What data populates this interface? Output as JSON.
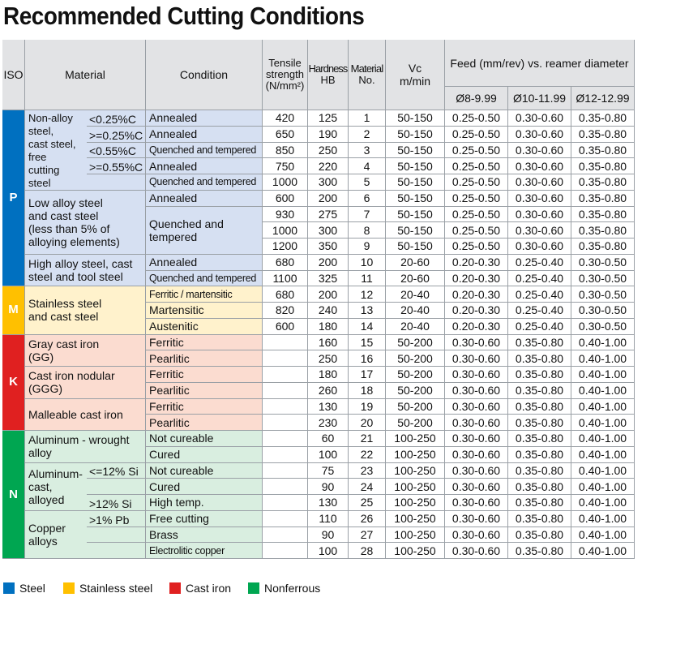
{
  "title": "Recommended Cutting Conditions",
  "colors": {
    "steel": "#0070c0",
    "stainless": "#ffc000",
    "castiron": "#e02020",
    "nonferrous": "#00a651",
    "bg_p": "#d6e0f2",
    "bg_m": "#fff2cc",
    "bg_k": "#fbdcd0",
    "bg_n": "#d9eee0"
  },
  "headers": {
    "iso": "ISO",
    "material": "Material",
    "condition": "Condition",
    "tensile_line1": "Tensile",
    "tensile_line2": "strength",
    "tensile_line3": "(N/mm²)",
    "hardness_line1": "Hardness",
    "hardness_line2": "HB",
    "matno_line1": "Material",
    "matno_line2": "No.",
    "vc_line1": "Vc",
    "vc_line2": "m/min",
    "feed": "Feed (mm/rev) vs. reamer diameter",
    "d1": "Ø8-9.99",
    "d2": "Ø10-11.99",
    "d3": "Ø12-12.99"
  },
  "iso_groups": [
    {
      "letter": "P",
      "group": "steel"
    },
    {
      "letter": "M",
      "group": "stainless"
    },
    {
      "letter": "K",
      "group": "castiron"
    },
    {
      "letter": "N",
      "group": "nonferrous"
    }
  ],
  "materials": {
    "nonalloy_l1": "Non-alloy",
    "nonalloy_l2": "steel,",
    "nonalloy_l3": "cast steel,",
    "nonalloy_l4": "free",
    "nonalloy_l5": "cutting",
    "nonalloy_l6": "steel",
    "nonalloy_s1": "<0.25%C",
    "nonalloy_s2": ">=0.25%C",
    "nonalloy_s3": "<0.55%C",
    "nonalloy_s4": ">=0.55%C",
    "lowalloy_l1": "Low alloy steel",
    "lowalloy_l2": "and cast steel",
    "lowalloy_l3": "(less than 5% of",
    "lowalloy_l4": "alloying elements)",
    "highalloy_l1": "High alloy steel, cast",
    "highalloy_l2": "steel and tool steel",
    "stainless_l1": "Stainless steel",
    "stainless_l2": "and cast steel",
    "gray_l1": "Gray cast iron",
    "gray_l2": "(GG)",
    "nodular_l1": "Cast iron nodular",
    "nodular_l2": "(GGG)",
    "malleable": "Malleable cast iron",
    "alwrought_l1": "Aluminum - wrought",
    "alwrought_l2": "alloy",
    "alcast_l1": "Aluminum-",
    "alcast_l2": "cast,",
    "alcast_l3": "alloyed",
    "alcast_s1": "<=12% Si",
    "alcast_s2": ">12% Si",
    "copper_l1": "Copper",
    "copper_l2": "alloys",
    "copper_s1": ">1% Pb"
  },
  "quenched_l1": "Quenched and",
  "quenched_l2": "tempered",
  "rows": [
    {
      "condition": "Annealed",
      "tensile": "420",
      "hb": "125",
      "no": "1",
      "vc": "50-150",
      "f1": "0.25-0.50",
      "f2": "0.30-0.60",
      "f3": "0.35-0.80"
    },
    {
      "condition": "Annealed",
      "tensile": "650",
      "hb": "190",
      "no": "2",
      "vc": "50-150",
      "f1": "0.25-0.50",
      "f2": "0.30-0.60",
      "f3": "0.35-0.80"
    },
    {
      "condition": "Quenched and tempered",
      "tensile": "850",
      "hb": "250",
      "no": "3",
      "vc": "50-150",
      "f1": "0.25-0.50",
      "f2": "0.30-0.60",
      "f3": "0.35-0.80"
    },
    {
      "condition": "Annealed",
      "tensile": "750",
      "hb": "220",
      "no": "4",
      "vc": "50-150",
      "f1": "0.25-0.50",
      "f2": "0.30-0.60",
      "f3": "0.35-0.80"
    },
    {
      "condition": "Quenched and tempered",
      "tensile": "1000",
      "hb": "300",
      "no": "5",
      "vc": "50-150",
      "f1": "0.25-0.50",
      "f2": "0.30-0.60",
      "f3": "0.35-0.80"
    },
    {
      "condition": "Annealed",
      "tensile": "600",
      "hb": "200",
      "no": "6",
      "vc": "50-150",
      "f1": "0.25-0.50",
      "f2": "0.30-0.60",
      "f3": "0.35-0.80"
    },
    {
      "condition": "",
      "tensile": "930",
      "hb": "275",
      "no": "7",
      "vc": "50-150",
      "f1": "0.25-0.50",
      "f2": "0.30-0.60",
      "f3": "0.35-0.80"
    },
    {
      "condition": "",
      "tensile": "1000",
      "hb": "300",
      "no": "8",
      "vc": "50-150",
      "f1": "0.25-0.50",
      "f2": "0.30-0.60",
      "f3": "0.35-0.80"
    },
    {
      "condition": "",
      "tensile": "1200",
      "hb": "350",
      "no": "9",
      "vc": "50-150",
      "f1": "0.25-0.50",
      "f2": "0.30-0.60",
      "f3": "0.35-0.80"
    },
    {
      "condition": "Annealed",
      "tensile": "680",
      "hb": "200",
      "no": "10",
      "vc": "20-60",
      "f1": "0.20-0.30",
      "f2": "0.25-0.40",
      "f3": "0.30-0.50"
    },
    {
      "condition": "Quenched and tempered",
      "tensile": "1100",
      "hb": "325",
      "no": "11",
      "vc": "20-60",
      "f1": "0.20-0.30",
      "f2": "0.25-0.40",
      "f3": "0.30-0.50"
    },
    {
      "condition": "Ferritic / martensitic",
      "tensile": "680",
      "hb": "200",
      "no": "12",
      "vc": "20-40",
      "f1": "0.20-0.30",
      "f2": "0.25-0.40",
      "f3": "0.30-0.50"
    },
    {
      "condition": "Martensitic",
      "tensile": "820",
      "hb": "240",
      "no": "13",
      "vc": "20-40",
      "f1": "0.20-0.30",
      "f2": "0.25-0.40",
      "f3": "0.30-0.50"
    },
    {
      "condition": "Austenitic",
      "tensile": "600",
      "hb": "180",
      "no": "14",
      "vc": "20-40",
      "f1": "0.20-0.30",
      "f2": "0.25-0.40",
      "f3": "0.30-0.50"
    },
    {
      "condition": "Ferritic",
      "tensile": "",
      "hb": "160",
      "no": "15",
      "vc": "50-200",
      "f1": "0.30-0.60",
      "f2": "0.35-0.80",
      "f3": "0.40-1.00"
    },
    {
      "condition": "Pearlitic",
      "tensile": "",
      "hb": "250",
      "no": "16",
      "vc": "50-200",
      "f1": "0.30-0.60",
      "f2": "0.35-0.80",
      "f3": "0.40-1.00"
    },
    {
      "condition": "Ferritic",
      "tensile": "",
      "hb": "180",
      "no": "17",
      "vc": "50-200",
      "f1": "0.30-0.60",
      "f2": "0.35-0.80",
      "f3": "0.40-1.00"
    },
    {
      "condition": "Pearlitic",
      "tensile": "",
      "hb": "260",
      "no": "18",
      "vc": "50-200",
      "f1": "0.30-0.60",
      "f2": "0.35-0.80",
      "f3": "0.40-1.00"
    },
    {
      "condition": "Ferritic",
      "tensile": "",
      "hb": "130",
      "no": "19",
      "vc": "50-200",
      "f1": "0.30-0.60",
      "f2": "0.35-0.80",
      "f3": "0.40-1.00"
    },
    {
      "condition": "Pearlitic",
      "tensile": "",
      "hb": "230",
      "no": "20",
      "vc": "50-200",
      "f1": "0.30-0.60",
      "f2": "0.35-0.80",
      "f3": "0.40-1.00"
    },
    {
      "condition": "Not cureable",
      "tensile": "",
      "hb": "60",
      "no": "21",
      "vc": "100-250",
      "f1": "0.30-0.60",
      "f2": "0.35-0.80",
      "f3": "0.40-1.00"
    },
    {
      "condition": "Cured",
      "tensile": "",
      "hb": "100",
      "no": "22",
      "vc": "100-250",
      "f1": "0.30-0.60",
      "f2": "0.35-0.80",
      "f3": "0.40-1.00"
    },
    {
      "condition": "Not cureable",
      "tensile": "",
      "hb": "75",
      "no": "23",
      "vc": "100-250",
      "f1": "0.30-0.60",
      "f2": "0.35-0.80",
      "f3": "0.40-1.00"
    },
    {
      "condition": "Cured",
      "tensile": "",
      "hb": "90",
      "no": "24",
      "vc": "100-250",
      "f1": "0.30-0.60",
      "f2": "0.35-0.80",
      "f3": "0.40-1.00"
    },
    {
      "condition": "High temp.",
      "tensile": "",
      "hb": "130",
      "no": "25",
      "vc": "100-250",
      "f1": "0.30-0.60",
      "f2": "0.35-0.80",
      "f3": "0.40-1.00"
    },
    {
      "condition": "Free cutting",
      "tensile": "",
      "hb": "110",
      "no": "26",
      "vc": "100-250",
      "f1": "0.30-0.60",
      "f2": "0.35-0.80",
      "f3": "0.40-1.00"
    },
    {
      "condition": "Brass",
      "tensile": "",
      "hb": "90",
      "no": "27",
      "vc": "100-250",
      "f1": "0.30-0.60",
      "f2": "0.35-0.80",
      "f3": "0.40-1.00"
    },
    {
      "condition": "Electrolitic copper",
      "tensile": "",
      "hb": "100",
      "no": "28",
      "vc": "100-250",
      "f1": "0.30-0.60",
      "f2": "0.35-0.80",
      "f3": "0.40-1.00"
    }
  ],
  "legend": [
    {
      "label": "Steel",
      "group": "steel"
    },
    {
      "label": "Stainless steel",
      "group": "stainless"
    },
    {
      "label": "Cast iron",
      "group": "castiron"
    },
    {
      "label": "Nonferrous",
      "group": "nonferrous"
    }
  ]
}
